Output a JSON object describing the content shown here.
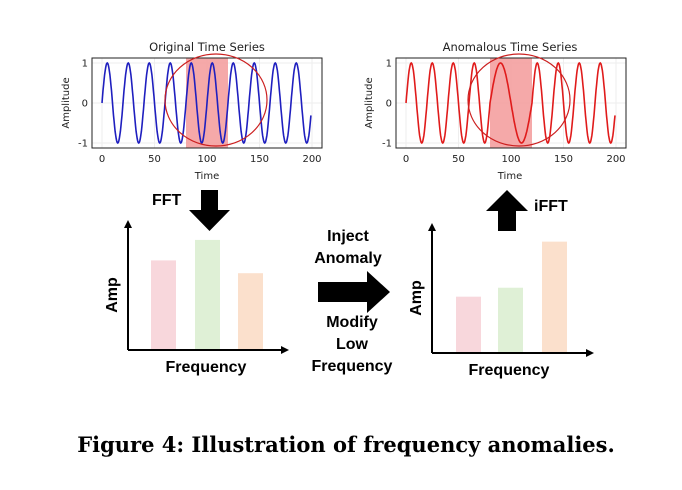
{
  "plots": [
    {
      "title": "Original Time Series",
      "xlabel": "Time",
      "ylabel": "Amplitude",
      "xticks": [
        "0",
        "50",
        "100",
        "150",
        "200"
      ],
      "yticks": [
        "1",
        "0",
        "-1"
      ],
      "line_color": "#1f1fbf",
      "anomaly": false,
      "shaded_range": [
        80,
        120
      ]
    },
    {
      "title": "Anomalous Time Series",
      "xlabel": "Time",
      "ylabel": "Amplitude",
      "xticks": [
        "0",
        "50",
        "100",
        "150",
        "200"
      ],
      "yticks": [
        "1",
        "0",
        "-1"
      ],
      "line_color": "#e01b1b",
      "anomaly": true,
      "shaded_range": [
        80,
        120
      ]
    }
  ],
  "spectra": [
    {
      "xlabel": "Frequency",
      "ylabel": "Amp",
      "values": [
        0.7,
        0.86,
        0.6
      ],
      "colors": [
        "#f8d7dc",
        "#dff0d6",
        "#fbe0cc"
      ]
    },
    {
      "xlabel": "Frequency",
      "ylabel": "Amp",
      "values": [
        0.44,
        0.51,
        0.87
      ],
      "colors": [
        "#f8d7dc",
        "#dff0d6",
        "#fbe0cc"
      ]
    }
  ],
  "labels": {
    "fft": "FFT",
    "ifft": "iFFT",
    "inject": [
      "Inject",
      "Anomaly"
    ],
    "modify": [
      "Modify",
      "Low",
      "Frequency"
    ]
  },
  "caption": "Figure 4: Illustration of frequency anomalies.",
  "colors": {
    "highlight": "#f4a0a0",
    "circle": "#cc2020"
  }
}
